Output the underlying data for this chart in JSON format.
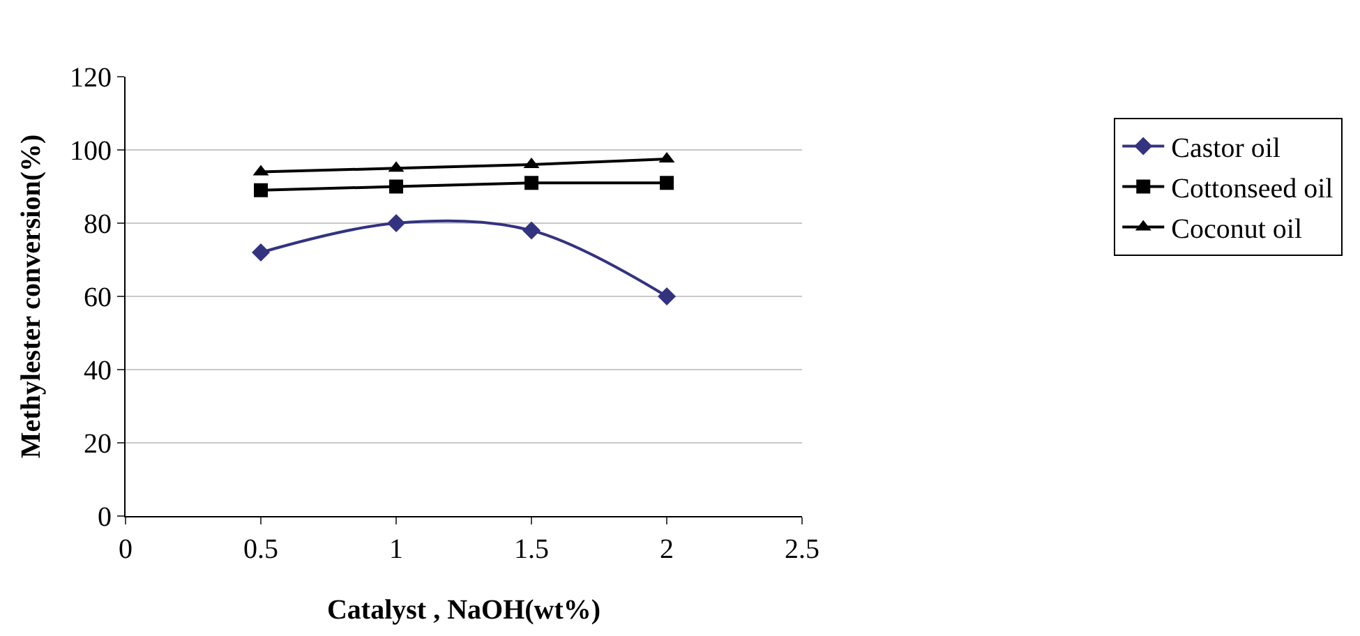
{
  "chart_data": {
    "type": "line",
    "xlabel": "Catalyst , NaOH(wt%)",
    "ylabel": "Methylester conversion(%)",
    "x": [
      0.5,
      1,
      1.5,
      2
    ],
    "series": [
      {
        "name": "Castor oil",
        "color": "#333380",
        "values": [
          72,
          80,
          78,
          60
        ],
        "marker": "diamond"
      },
      {
        "name": "Cottonseed oil",
        "color": "#000000",
        "values": [
          89,
          90,
          91,
          91
        ],
        "marker": "square"
      },
      {
        "name": "Coconut oil",
        "color": "#000000",
        "values": [
          94,
          95,
          96,
          97.5
        ],
        "marker": "triangle"
      }
    ],
    "xlim": [
      0,
      2.5
    ],
    "xticks": [
      0,
      0.5,
      1,
      1.5,
      2,
      2.5
    ],
    "ylim": [
      0,
      120
    ],
    "yticks": [
      0,
      20,
      40,
      60,
      80,
      100,
      120
    ],
    "grid": "y",
    "legend": "right",
    "line_style": "solid"
  }
}
